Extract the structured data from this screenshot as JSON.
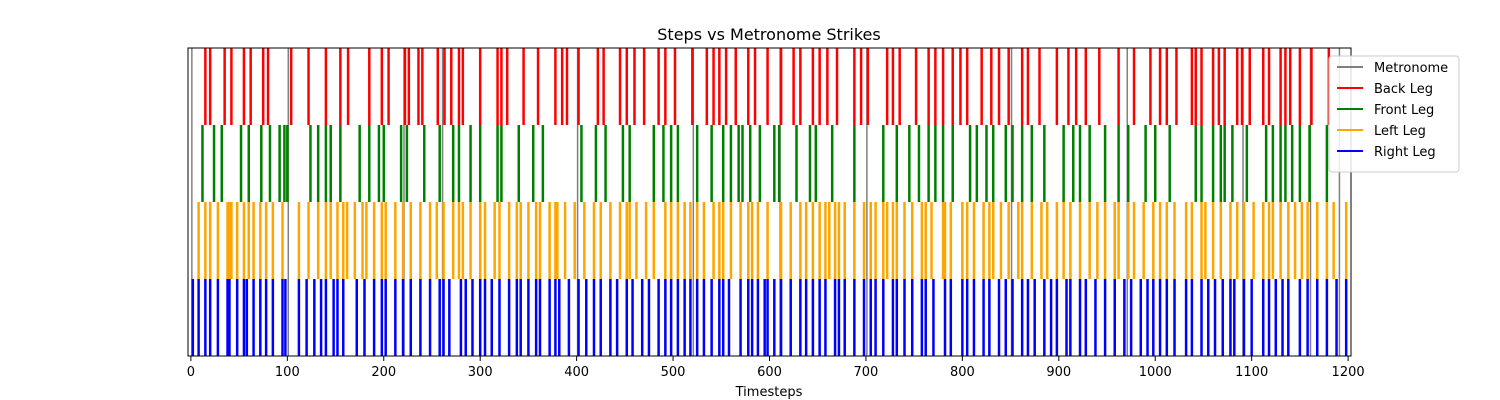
{
  "chart_data": {
    "type": "event-plot",
    "title": "Steps vs Metronome Strikes",
    "xlabel": "Timesteps",
    "ylabel": "",
    "xlim": [
      -3,
      1203
    ],
    "xticks": [
      0,
      100,
      200,
      300,
      400,
      500,
      600,
      700,
      800,
      900,
      1000,
      1100,
      1200
    ],
    "grid": false,
    "legend_position": "top-right",
    "legend": [
      "Metronome",
      "Back Leg",
      "Front Leg",
      "Left Leg",
      "Right Leg"
    ],
    "metronome": {
      "name": "Metronome",
      "color": "#808080",
      "x": [
        1,
        101,
        221,
        261,
        401,
        521,
        611,
        701,
        851,
        971,
        1091,
        1161,
        1191
      ]
    },
    "series": [
      {
        "name": "Back Leg",
        "color": "#ff0000",
        "row": 0,
        "x": [
          15,
          20,
          35,
          42,
          55,
          62,
          75,
          80,
          104,
          122,
          140,
          155,
          163,
          185,
          198,
          205,
          222,
          226,
          236,
          240,
          256,
          263,
          270,
          278,
          282,
          300,
          318,
          322,
          328,
          345,
          360,
          378,
          385,
          390,
          402,
          422,
          428,
          445,
          452,
          460,
          470,
          485,
          492,
          502,
          520,
          535,
          542,
          548,
          555,
          565,
          578,
          585,
          598,
          612,
          625,
          632,
          645,
          652,
          660,
          670,
          688,
          695,
          702,
          722,
          728,
          735,
          752,
          765,
          772,
          780,
          790,
          798,
          805,
          820,
          830,
          838,
          848,
          862,
          868,
          880,
          898,
          910,
          918,
          928,
          942,
          962,
          978,
          995,
          1005,
          1012,
          1022,
          1038,
          1042,
          1048,
          1060,
          1066,
          1072,
          1085,
          1090,
          1098,
          1112,
          1118,
          1130,
          1135,
          1140,
          1150,
          1162,
          1180
        ]
      },
      {
        "name": "Front Leg",
        "color": "#008000",
        "row": 1,
        "x": [
          12,
          24,
          32,
          52,
          60,
          73,
          82,
          92,
          97,
          100,
          124,
          132,
          140,
          145,
          155,
          175,
          185,
          195,
          200,
          218,
          224,
          242,
          258,
          272,
          278,
          290,
          300,
          318,
          322,
          340,
          355,
          365,
          405,
          420,
          430,
          448,
          455,
          480,
          490,
          498,
          505,
          525,
          540,
          552,
          560,
          568,
          572,
          580,
          590,
          605,
          610,
          628,
          642,
          648,
          665,
          688,
          718,
          732,
          745,
          755,
          765,
          772,
          780,
          790,
          808,
          815,
          825,
          832,
          845,
          852,
          862,
          872,
          885,
          905,
          915,
          922,
          932,
          948,
          962,
          972,
          990,
          1000,
          1015,
          1042,
          1048,
          1060,
          1068,
          1072,
          1080,
          1095,
          1115,
          1122,
          1130,
          1135,
          1142,
          1150,
          1160,
          1178
        ]
      },
      {
        "name": "Left Leg",
        "color": "#ffa500",
        "row": 2,
        "x": [
          8,
          15,
          20,
          28,
          38,
          40,
          42,
          48,
          55,
          60,
          65,
          72,
          78,
          85,
          95,
          112,
          122,
          132,
          140,
          145,
          152,
          158,
          162,
          170,
          178,
          182,
          190,
          198,
          202,
          212,
          220,
          228,
          238,
          248,
          255,
          262,
          272,
          278,
          282,
          290,
          300,
          305,
          315,
          320,
          330,
          338,
          342,
          350,
          358,
          362,
          372,
          378,
          380,
          388,
          398,
          408,
          418,
          425,
          435,
          445,
          452,
          455,
          462,
          472,
          480,
          492,
          498,
          505,
          512,
          518,
          525,
          532,
          542,
          548,
          552,
          560,
          570,
          578,
          582,
          588,
          598,
          612,
          622,
          632,
          638,
          645,
          652,
          658,
          662,
          668,
          672,
          678,
          688,
          698,
          705,
          710,
          718,
          722,
          728,
          732,
          740,
          748,
          758,
          762,
          768,
          780,
          782,
          788,
          800,
          805,
          812,
          822,
          828,
          832,
          840,
          848,
          858,
          862,
          872,
          882,
          888,
          898,
          905,
          912,
          922,
          932,
          940,
          948,
          958,
          962,
          972,
          978,
          988,
          998,
          1005,
          1012,
          1020,
          1032,
          1038,
          1048,
          1052,
          1060,
          1068,
          1078,
          1085,
          1092,
          1102,
          1112,
          1118,
          1122,
          1130,
          1138,
          1145,
          1152,
          1158,
          1168,
          1178,
          1185,
          1198
        ]
      },
      {
        "name": "Right Leg",
        "color": "#0000ff",
        "row": 3,
        "x": [
          2,
          8,
          15,
          20,
          28,
          38,
          40,
          48,
          55,
          58,
          65,
          72,
          78,
          85,
          95,
          98,
          112,
          120,
          128,
          135,
          140,
          148,
          152,
          158,
          172,
          180,
          190,
          198,
          202,
          212,
          220,
          228,
          238,
          248,
          258,
          262,
          268,
          280,
          285,
          292,
          300,
          305,
          312,
          320,
          330,
          338,
          342,
          350,
          358,
          362,
          372,
          378,
          382,
          392,
          402,
          410,
          418,
          425,
          435,
          442,
          452,
          458,
          468,
          475,
          485,
          492,
          498,
          505,
          512,
          518,
          525,
          532,
          540,
          548,
          552,
          558,
          570,
          578,
          582,
          588,
          595,
          598,
          605,
          612,
          622,
          632,
          638,
          645,
          652,
          658,
          668,
          672,
          678,
          688,
          698,
          705,
          710,
          718,
          728,
          732,
          740,
          748,
          758,
          762,
          770,
          782,
          788,
          800,
          805,
          812,
          822,
          828,
          838,
          845,
          852,
          862,
          868,
          875,
          885,
          892,
          898,
          908,
          912,
          922,
          928,
          938,
          948,
          958,
          968,
          975,
          985,
          992,
          998,
          1005,
          1012,
          1020,
          1032,
          1038,
          1048,
          1055,
          1062,
          1070,
          1078,
          1082,
          1092,
          1100,
          1112,
          1118,
          1125,
          1132,
          1138,
          1150,
          1158,
          1168,
          1178,
          1188,
          1198
        ]
      }
    ]
  }
}
